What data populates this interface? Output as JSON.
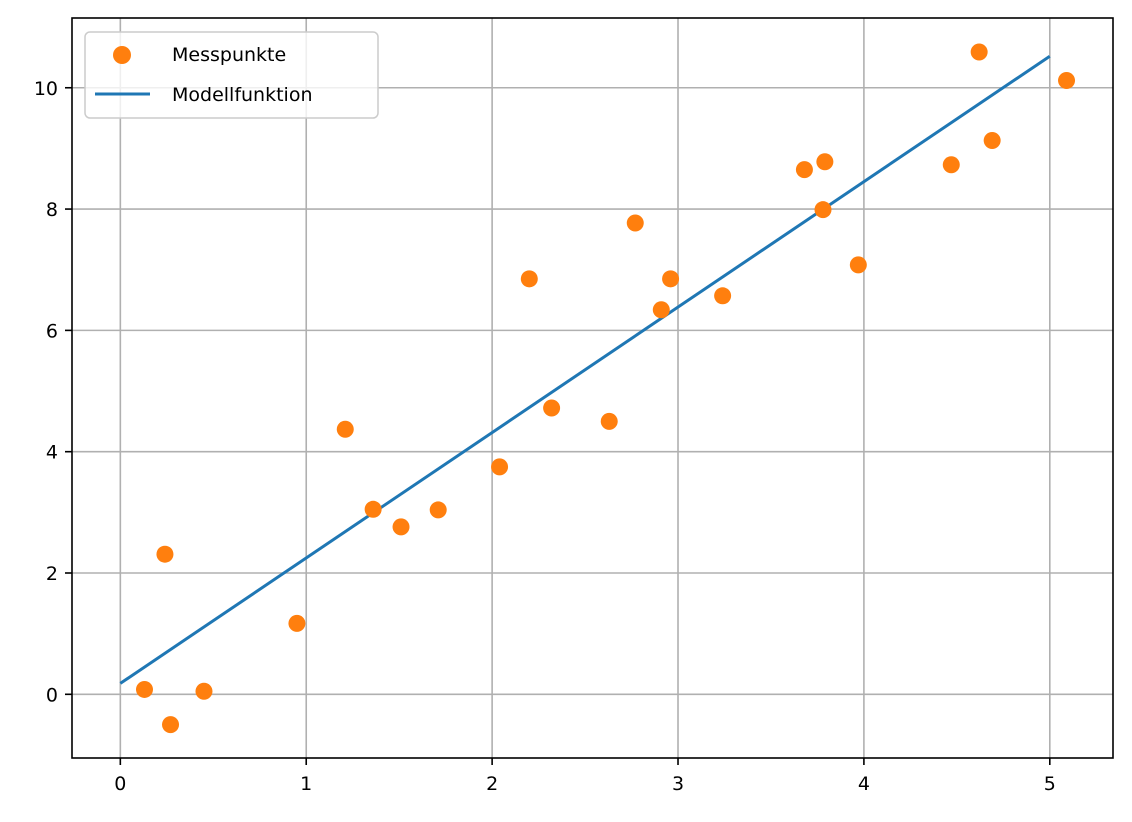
{
  "chart_data": {
    "type": "scatter",
    "title": "",
    "xlabel": "",
    "ylabel": "",
    "xlim": [
      -0.26,
      5.34
    ],
    "ylim": [
      -1.05,
      11.15
    ],
    "grid": true,
    "legend_position": "upper left",
    "x_ticks": [
      0,
      1,
      2,
      3,
      4,
      5
    ],
    "y_ticks": [
      0,
      2,
      4,
      6,
      8,
      10
    ],
    "series": [
      {
        "name": "Messpunkte",
        "kind": "scatter",
        "color": "#ff7f0e",
        "points": [
          [
            0.13,
            0.08
          ],
          [
            0.24,
            2.31
          ],
          [
            0.27,
            -0.5
          ],
          [
            0.45,
            0.05
          ],
          [
            0.95,
            1.17
          ],
          [
            1.21,
            4.37
          ],
          [
            1.36,
            3.05
          ],
          [
            1.51,
            2.76
          ],
          [
            1.71,
            3.04
          ],
          [
            2.04,
            3.75
          ],
          [
            2.2,
            6.85
          ],
          [
            2.32,
            4.72
          ],
          [
            2.63,
            4.5
          ],
          [
            2.77,
            7.77
          ],
          [
            2.91,
            6.34
          ],
          [
            2.96,
            6.85
          ],
          [
            3.24,
            6.57
          ],
          [
            3.68,
            8.65
          ],
          [
            3.78,
            7.99
          ],
          [
            3.79,
            8.78
          ],
          [
            3.97,
            7.08
          ],
          [
            4.47,
            8.73
          ],
          [
            4.62,
            10.59
          ],
          [
            4.69,
            9.13
          ],
          [
            5.09,
            10.12
          ]
        ]
      },
      {
        "name": "Modellfunktion",
        "kind": "line",
        "color": "#1f77b4",
        "points": [
          [
            0,
            0.18
          ],
          [
            5,
            10.52
          ]
        ]
      }
    ]
  },
  "legend": {
    "items": [
      {
        "label": "Messpunkte"
      },
      {
        "label": "Modellfunktion"
      }
    ]
  }
}
